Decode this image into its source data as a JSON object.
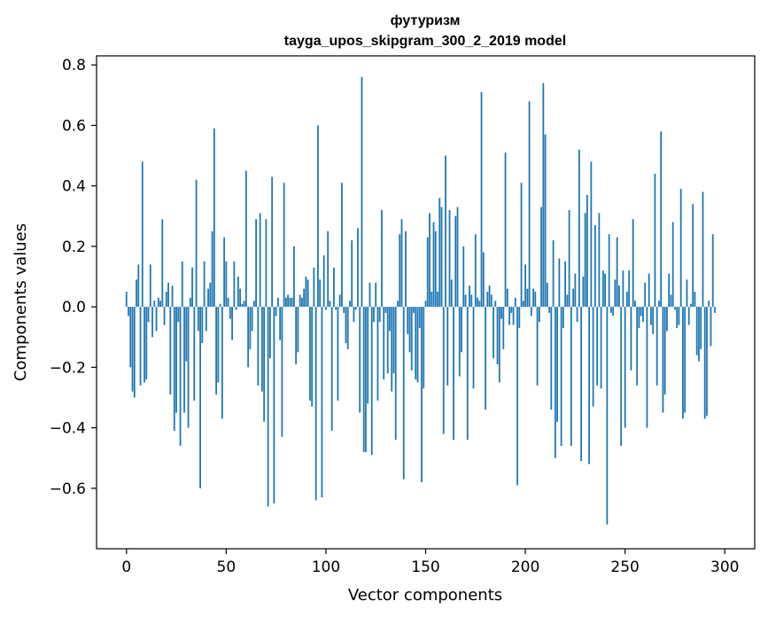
{
  "chart_data": {
    "type": "bar",
    "title": "футуризм",
    "subtitle": "tayga_upos_skipgram_300_2_2019 model",
    "xlabel": "Vector components",
    "ylabel": "Components values",
    "xlim": [
      -15,
      315
    ],
    "ylim": [
      -0.8,
      0.83
    ],
    "xticks": [
      0,
      50,
      100,
      150,
      200,
      250,
      300
    ],
    "xtick_labels": [
      "0",
      "50",
      "100",
      "150",
      "200",
      "250",
      "300"
    ],
    "yticks": [
      -0.6,
      -0.4,
      -0.2,
      0.0,
      0.2,
      0.4,
      0.6,
      0.8
    ],
    "ytick_labels": [
      "−0.6",
      "−0.4",
      "−0.2",
      "0.0",
      "0.2",
      "0.4",
      "0.6",
      "0.8"
    ],
    "grid": false,
    "color": "#1f77b4",
    "x_start": 0,
    "values": [
      0.05,
      -0.03,
      -0.2,
      -0.28,
      -0.3,
      0.09,
      0.14,
      -0.26,
      0.48,
      -0.25,
      -0.24,
      -0.05,
      0.14,
      -0.1,
      0.02,
      -0.08,
      0.03,
      0.02,
      0.29,
      -0.06,
      0.05,
      0.08,
      -0.29,
      0.07,
      -0.41,
      -0.35,
      -0.05,
      -0.46,
      0.15,
      -0.35,
      -0.18,
      -0.4,
      0.03,
      0.13,
      -0.31,
      0.42,
      -0.08,
      -0.6,
      -0.12,
      0.15,
      -0.08,
      0.06,
      0.08,
      0.25,
      0.59,
      -0.29,
      -0.25,
      0.01,
      -0.37,
      0.23,
      0.15,
      0.03,
      -0.04,
      -0.11,
      0.15,
      -0.01,
      0.1,
      0.06,
      0.01,
      0.02,
      0.45,
      -0.2,
      -0.14,
      -0.08,
      0.02,
      0.29,
      -0.26,
      0.31,
      -0.28,
      -0.38,
      0.29,
      -0.66,
      -0.17,
      0.43,
      -0.65,
      -0.03,
      0.03,
      -0.11,
      -0.43,
      0.41,
      0.03,
      0.04,
      0.03,
      0.03,
      0.2,
      -0.19,
      -0.15,
      0.04,
      0.03,
      0.06,
      0.1,
      0.09,
      -0.31,
      -0.33,
      0.13,
      -0.64,
      0.6,
      0.09,
      -0.63,
      0.17,
      -0.01,
      0.25,
      0.02,
      -0.41,
      0.13,
      -0.01,
      -0.31,
      0.04,
      0.41,
      -0.02,
      -0.12,
      -0.14,
      0.02,
      0.22,
      -0.05,
      -0.01,
      0.26,
      -0.35,
      0.76,
      -0.48,
      -0.48,
      -0.32,
      0.08,
      -0.49,
      -0.05,
      0.08,
      -0.31,
      -0.05,
      0.32,
      -0.24,
      -0.02,
      -0.22,
      -0.08,
      -0.28,
      -0.22,
      -0.44,
      0.02,
      0.24,
      0.29,
      -0.57,
      0.25,
      -0.09,
      -0.15,
      -0.21,
      -0.02,
      -0.24,
      -0.25,
      -0.07,
      -0.58,
      -0.27,
      0.02,
      0.23,
      0.31,
      0.05,
      0.28,
      0.25,
      0.05,
      0.36,
      0.33,
      -0.42,
      0.5,
      -0.26,
      0.32,
      0.09,
      -0.44,
      0.3,
      0.33,
      -0.23,
      -0.15,
      0.2,
      0.04,
      -0.44,
      0.07,
      0.04,
      -0.27,
      0.24,
      0.03,
      0.02,
      0.71,
      0.18,
      -0.34,
      0.05,
      0.07,
      0.04,
      -0.17,
      0.02,
      -0.19,
      -0.25,
      -0.04,
      -0.14,
      0.51,
      0.06,
      -0.06,
      -0.02,
      -0.06,
      0.03,
      -0.59,
      -0.07,
      0.41,
      0.02,
      0.14,
      0.06,
      0.68,
      -0.03,
      0.06,
      0.05,
      -0.26,
      -0.05,
      0.33,
      0.74,
      0.57,
      0.08,
      -0.02,
      -0.34,
      0.22,
      -0.5,
      -0.38,
      0.16,
      -0.46,
      -0.07,
      0.15,
      0.04,
      0.32,
      -0.46,
      0.06,
      0.11,
      -0.05,
      0.52,
      -0.51,
      0.1,
      0.31,
      0.37,
      -0.52,
      0.48,
      -0.33,
      0.27,
      -0.26,
      0.31,
      -0.27,
      0.12,
      0.11,
      -0.72,
      0.24,
      -0.02,
      -0.03,
      0.09,
      0.23,
      0.07,
      -0.46,
      0.12,
      -0.4,
      0.05,
      0.12,
      -0.21,
      0.29,
      0.02,
      -0.26,
      -0.07,
      -0.03,
      -0.05,
      0.08,
      -0.4,
      0.11,
      -0.06,
      -0.09,
      0.44,
      -0.26,
      0.02,
      0.58,
      -0.35,
      -0.29,
      -0.08,
      0.11,
      0.04,
      0.28,
      -0.01,
      -0.07,
      -0.06,
      0.39,
      -0.37,
      -0.35,
      0.09,
      -0.06,
      0.01,
      0.34,
      0.05,
      -0.16,
      -0.18,
      -0.14,
      0.38,
      -0.37,
      -0.36,
      0.02,
      -0.13,
      0.24,
      -0.02
    ]
  }
}
